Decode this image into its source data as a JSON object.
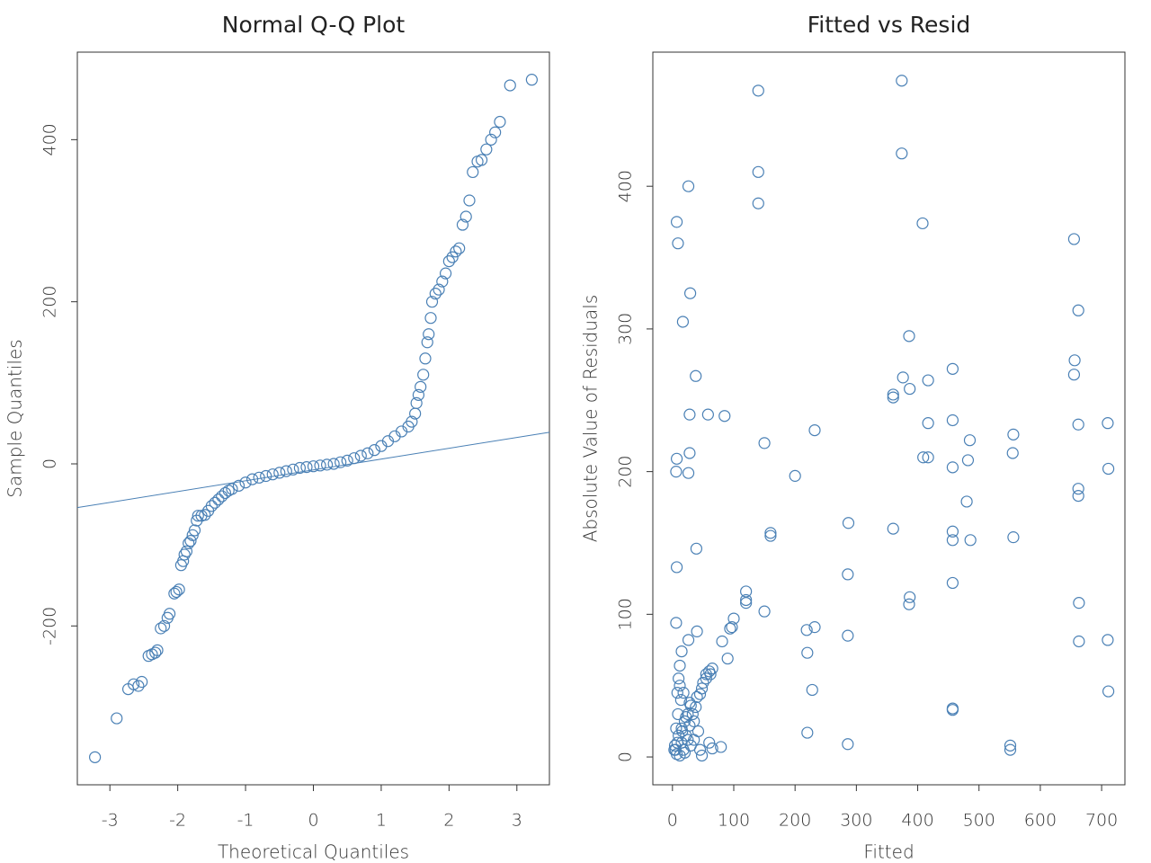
{
  "chart_data": [
    {
      "type": "scatter",
      "title": "Normal Q-Q Plot",
      "x_label": "Theoretical Quantiles",
      "y_label": "Sample Quantiles",
      "xlim": [
        -3.48,
        3.48
      ],
      "ylim": [
        -396,
        508
      ],
      "xticks": [
        -3,
        -2,
        -1,
        0,
        1,
        2,
        3
      ],
      "yticks": [
        -200,
        0,
        200,
        400
      ],
      "series": [
        {
          "color": "#4a80b5",
          "x": [
            -3.22,
            -2.9,
            -2.73,
            -2.65,
            -2.58,
            -2.53,
            -2.43,
            -2.38,
            -2.33,
            -2.3,
            -2.25,
            -2.2,
            -2.15,
            -2.12,
            -2.05,
            -2.02,
            -1.98,
            -1.95,
            -1.92,
            -1.9,
            -1.87,
            -1.84,
            -1.81,
            -1.78,
            -1.75,
            -1.72,
            -1.7,
            -1.65,
            -1.6,
            -1.55,
            -1.5,
            -1.45,
            -1.4,
            -1.35,
            -1.3,
            -1.25,
            -1.2,
            -1.1,
            -1.0,
            -0.9,
            -0.8,
            -0.7,
            -0.6,
            -0.5,
            -0.4,
            -0.3,
            -0.2,
            -0.1,
            0,
            0.1,
            0.2,
            0.3,
            0.4,
            0.5,
            0.6,
            0.7,
            0.8,
            0.9,
            1.0,
            1.1,
            1.2,
            1.3,
            1.4,
            1.45,
            1.5,
            1.52,
            1.55,
            1.58,
            1.62,
            1.65,
            1.68,
            1.7,
            1.73,
            1.75,
            1.8,
            1.85,
            1.9,
            1.95,
            2.0,
            2.05,
            2.1,
            2.15,
            2.2,
            2.25,
            2.3,
            2.35,
            2.42,
            2.48,
            2.55,
            2.62,
            2.68,
            2.75,
            2.9,
            3.22
          ],
          "values": [
            -362,
            -314,
            -278,
            -272,
            -274,
            -269,
            -237,
            -235,
            -233,
            -230,
            -203,
            -200,
            -190,
            -185,
            -160,
            -158,
            -155,
            -125,
            -120,
            -112,
            -108,
            -98,
            -95,
            -88,
            -82,
            -70,
            -64,
            -64,
            -63,
            -58,
            -52,
            -48,
            -44,
            -40,
            -36,
            -33,
            -31,
            -27,
            -23,
            -19,
            -17,
            -15,
            -13,
            -11,
            -9,
            -7,
            -5,
            -4,
            -3,
            -2,
            -1,
            0,
            2,
            4,
            7,
            10,
            13,
            17,
            22,
            28,
            34,
            40,
            46,
            52,
            62,
            75,
            85,
            95,
            110,
            130,
            150,
            160,
            180,
            200,
            210,
            215,
            225,
            235,
            250,
            255,
            262,
            266,
            295,
            305,
            325,
            360,
            373,
            375,
            388,
            400,
            409,
            422,
            467,
            474
          ]
        }
      ],
      "reference_line": {
        "color": "#4a80b5",
        "x": [
          -3.48,
          3.48
        ],
        "values": [
          -54,
          39
        ]
      }
    },
    {
      "type": "scatter",
      "title": "Fitted vs Resid",
      "x_label": "Fitted",
      "y_label": "Absolute Value of Residuals",
      "xlim": [
        -32,
        738
      ],
      "ylim": [
        -19.5,
        494
      ],
      "xticks": [
        0,
        100,
        200,
        300,
        400,
        500,
        600,
        700
      ],
      "yticks": [
        0,
        100,
        200,
        300,
        400
      ],
      "series": [
        {
          "color": "#4a80b5",
          "x": [
            140,
            374,
            140,
            374,
            140,
            26,
            7,
            408,
            9,
            655,
            29,
            662,
            17,
            386,
            656,
            38,
            376,
            457,
            655,
            417,
            387,
            360,
            360,
            28,
            58,
            85,
            457,
            417,
            662,
            710,
            232,
            150,
            556,
            485,
            7,
            28,
            409,
            417,
            482,
            6,
            26,
            200,
            457,
            555,
            711,
            662,
            662,
            480,
            287,
            160,
            160,
            360,
            457,
            457,
            486,
            556,
            39,
            7,
            286,
            120,
            120,
            120,
            457,
            387,
            386,
            663,
            150,
            100,
            6,
            97,
            40,
            94,
            219,
            232,
            286,
            26,
            81,
            663,
            710,
            15,
            220,
            90,
            12,
            60,
            65,
            55,
            48,
            40,
            30,
            25,
            20,
            15,
            10,
            8,
            5,
            7,
            12,
            20,
            30,
            35,
            42,
            35,
            28,
            22,
            18,
            8,
            10,
            12,
            14,
            16,
            25,
            45,
            48,
            60,
            65,
            79,
            228,
            220,
            286,
            457,
            457,
            551,
            551,
            711,
            4,
            3,
            6,
            9,
            15,
            18,
            50,
            55,
            62,
            45,
            38,
            33,
            28,
            22
          ],
          "values": [
            467,
            474,
            410,
            423,
            388,
            400,
            375,
            374,
            360,
            363,
            325,
            313,
            305,
            295,
            278,
            267,
            266,
            272,
            268,
            264,
            258,
            254,
            252,
            240,
            240,
            239,
            236,
            234,
            233,
            234,
            229,
            220,
            226,
            222,
            209,
            213,
            210,
            210,
            208,
            200,
            199,
            197,
            203,
            213,
            202,
            188,
            183,
            179,
            164,
            157,
            155,
            160,
            158,
            152,
            152,
            154,
            146,
            133,
            128,
            116,
            110,
            108,
            122,
            112,
            107,
            108,
            102,
            97,
            94,
            91,
            88,
            90,
            89,
            91,
            85,
            82,
            81,
            81,
            82,
            74,
            73,
            69,
            64,
            60,
            62,
            55,
            48,
            42,
            36,
            30,
            25,
            20,
            15,
            10,
            5,
            2,
            1,
            3,
            8,
            12,
            18,
            25,
            38,
            28,
            45,
            45,
            55,
            50,
            40,
            18,
            12,
            5,
            1,
            10,
            6,
            7,
            47,
            17,
            9,
            33,
            34,
            8,
            5,
            46,
            8,
            5,
            20,
            30,
            10,
            5,
            52,
            58,
            58,
            44,
            35,
            30,
            22,
            15
          ]
        }
      ]
    }
  ]
}
